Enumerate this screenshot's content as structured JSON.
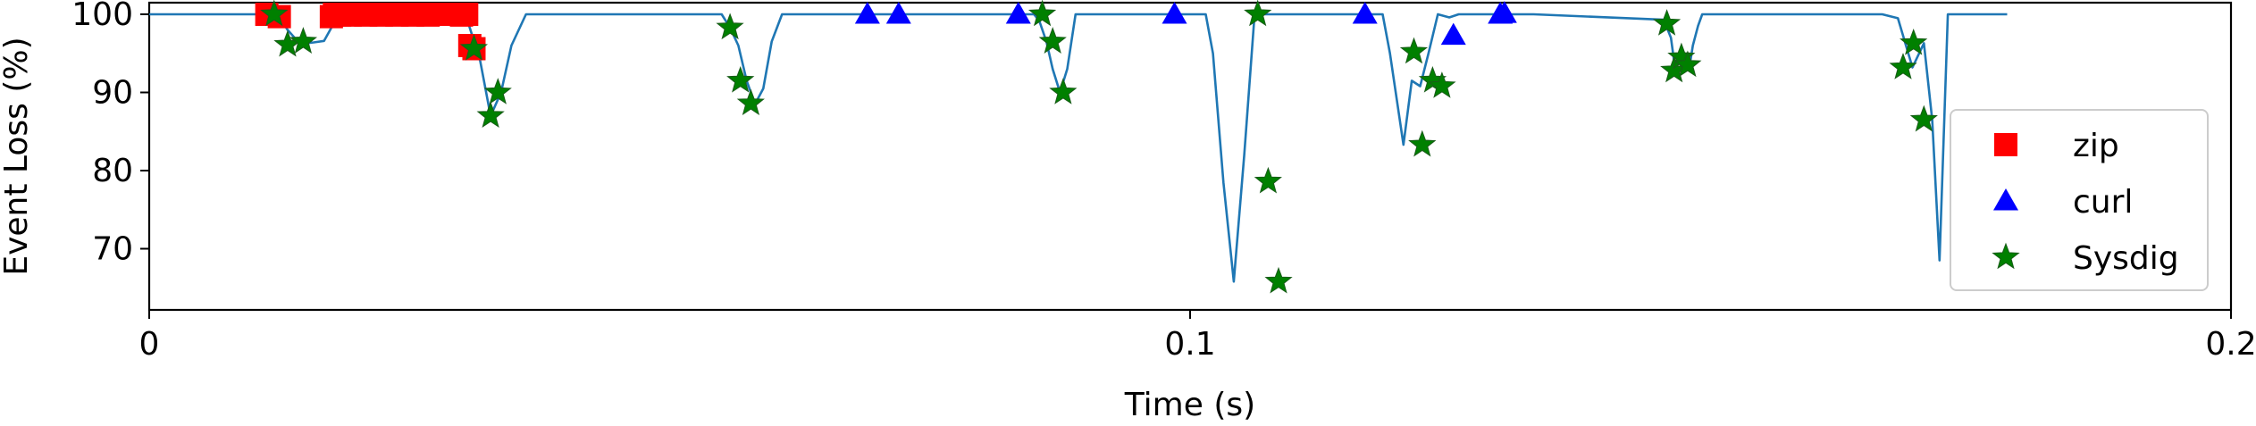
{
  "chart_data": {
    "type": "line",
    "title": "",
    "xlabel": "Time (s)",
    "ylabel": "Event Loss (%)",
    "xlim": [
      0,
      0.2
    ],
    "ylim": [
      64,
      100
    ],
    "xticks": [
      {
        "value": 0,
        "label": "0"
      },
      {
        "value": 0.1,
        "label": "0.1"
      },
      {
        "value": 0.2,
        "label": "0.2"
      }
    ],
    "yticks": [
      {
        "value": 70,
        "label": "70"
      },
      {
        "value": 80,
        "label": "80"
      },
      {
        "value": 90,
        "label": "90"
      },
      {
        "value": 100,
        "label": "100"
      }
    ],
    "grid": false,
    "legend": {
      "position": "right",
      "entries": [
        "zip",
        "curl",
        "Sysdig"
      ]
    },
    "line": {
      "color": "#1f77b4",
      "x": [
        0,
        0.0115,
        0.0125,
        0.0133,
        0.0145,
        0.0158,
        0.0168,
        0.0178,
        0.0198,
        0.029,
        0.0298,
        0.0305,
        0.0312,
        0.0318,
        0.0328,
        0.0338,
        0.0348,
        0.0362,
        0.0375,
        0.0405,
        0.055,
        0.0558,
        0.0566,
        0.0574,
        0.0582,
        0.059,
        0.0598,
        0.0608,
        0.0618,
        0.0625,
        0.0635,
        0.085,
        0.0855,
        0.0862,
        0.0868,
        0.0875,
        0.0882,
        0.089,
        0.0898,
        0.0905,
        0.0915,
        0.1015,
        0.1022,
        0.1032,
        0.1042,
        0.1052,
        0.1062,
        0.1072,
        0.1085,
        0.1108,
        0.1185,
        0.1192,
        0.1205,
        0.1213,
        0.1221,
        0.1229,
        0.1238,
        0.1249,
        0.1258,
        0.1265,
        0.127,
        0.128,
        0.13,
        0.1302,
        0.1305,
        0.133,
        0.1455,
        0.1462,
        0.1466,
        0.1472,
        0.1477,
        0.148,
        0.1483,
        0.1488,
        0.1492,
        0.1498,
        0.1505,
        0.1515,
        0.153,
        0.1555,
        0.1665,
        0.168,
        0.1694,
        0.1705,
        0.1713,
        0.172,
        0.1728,
        0.1738,
        0.176,
        0.1785
      ],
      "y": [
        100,
        100,
        99.7,
        98,
        96.2,
        96.4,
        96.6,
        99,
        100,
        100,
        100,
        99.5,
        96.6,
        94,
        87,
        90,
        96,
        100,
        100,
        100,
        100,
        98.3,
        96,
        91.5,
        88.5,
        90.5,
        96.5,
        100,
        100,
        100,
        100,
        100,
        99.2,
        96.5,
        93,
        90,
        93,
        100,
        100,
        100,
        100,
        100,
        95,
        78.5,
        65.8,
        82,
        100,
        100,
        100,
        100,
        100,
        95,
        83.3,
        91.5,
        90.8,
        95,
        100,
        99.6,
        100,
        100,
        100,
        100,
        100,
        100,
        100,
        100,
        99.3,
        97,
        93,
        95,
        94.5,
        93.5,
        96,
        98.5,
        100,
        100,
        100,
        100,
        100,
        100,
        100,
        99.5,
        93.2,
        96.3,
        86.5,
        68.5,
        100,
        100,
        100,
        100
      ]
    },
    "series": [
      {
        "name": "zip",
        "marker": "square",
        "color": "#ff0000",
        "x": [
          0.0113,
          0.0125,
          0.0175,
          0.0178,
          0.0183,
          0.0188,
          0.0193,
          0.0198,
          0.0203,
          0.0208,
          0.0213,
          0.0218,
          0.0223,
          0.0228,
          0.0233,
          0.0238,
          0.0243,
          0.0248,
          0.0253,
          0.0258,
          0.0263,
          0.0268,
          0.0285,
          0.0292,
          0.03,
          0.0305,
          0.0308,
          0.0312
        ],
        "y": [
          100,
          99.7,
          99.7,
          100,
          99.9,
          100,
          99.9,
          100,
          100,
          99.9,
          100,
          100,
          99.9,
          100,
          100,
          99.9,
          100,
          100,
          99.9,
          100,
          100,
          99.9,
          100,
          100,
          99.9,
          100,
          96,
          95.6
        ]
      },
      {
        "name": "curl",
        "marker": "triangle",
        "color": "#0000ff",
        "x": [
          0.069,
          0.072,
          0.0835,
          0.0985,
          0.1168,
          0.1253,
          0.1298,
          0.1302
        ],
        "y": [
          100,
          100,
          100,
          100,
          100,
          97.3,
          100,
          100.1
        ]
      },
      {
        "name": "Sysdig",
        "marker": "star",
        "color": "#008000",
        "x": [
          0.012,
          0.0133,
          0.0148,
          0.0312,
          0.0328,
          0.0335,
          0.0558,
          0.0568,
          0.0578,
          0.0858,
          0.0868,
          0.0878,
          0.1065,
          0.1075,
          0.1085,
          0.1215,
          0.1223,
          0.1233,
          0.1242,
          0.1458,
          0.1465,
          0.1472,
          0.1478,
          0.1685,
          0.1695,
          0.1705
        ],
        "y": [
          100,
          96.1,
          96.5,
          95.6,
          87,
          90,
          98.3,
          91.5,
          88.6,
          100,
          96.5,
          90,
          100,
          78.6,
          65.8,
          95.2,
          83.3,
          91.5,
          90.8,
          98.8,
          92.8,
          94.5,
          93.5,
          93.2,
          96.3,
          86.5
        ]
      }
    ]
  }
}
